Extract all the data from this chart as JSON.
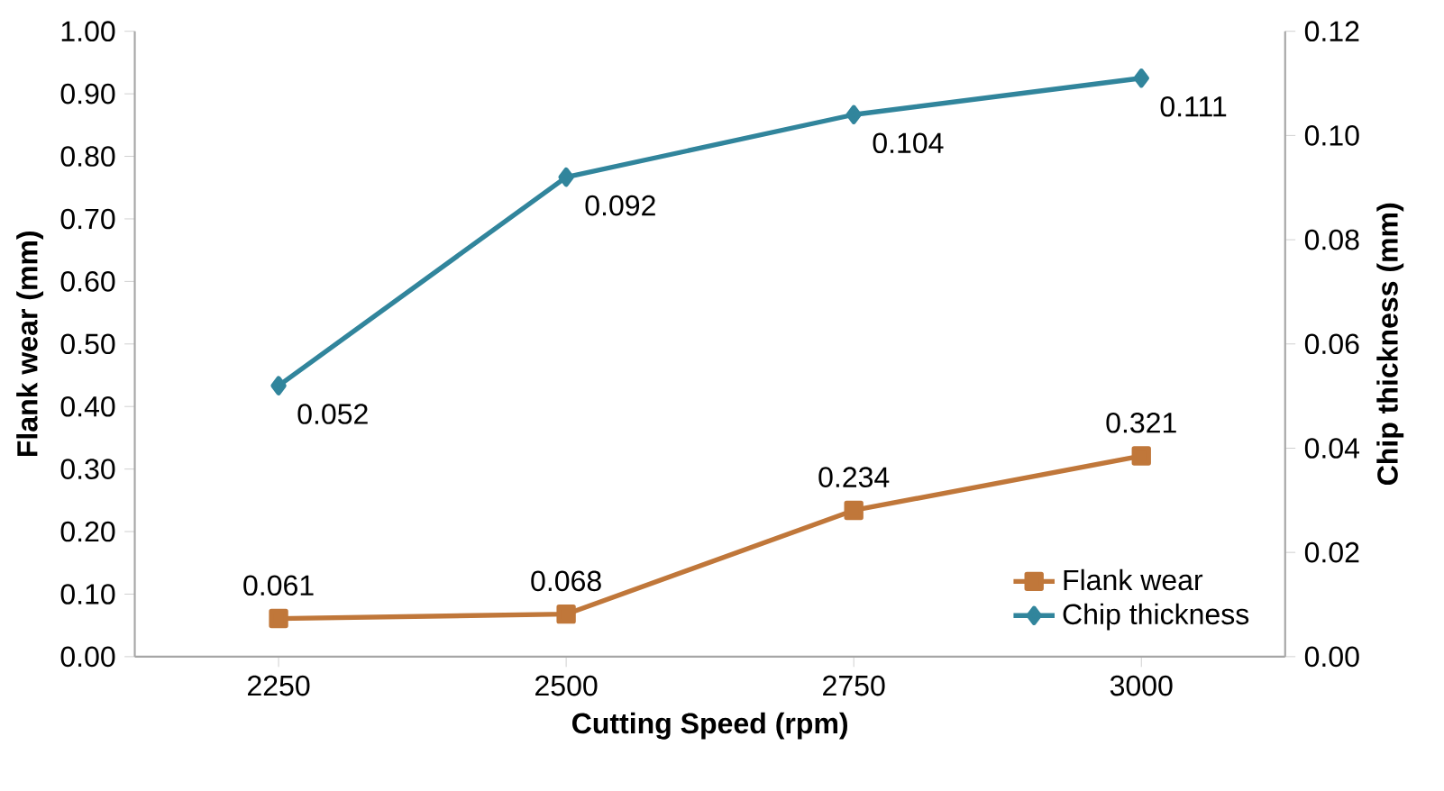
{
  "chart_data": {
    "type": "line",
    "xlabel": "Cutting Speed (rpm)",
    "ylabel": "Flank wear (mm)",
    "y2label": "Chip thickness (mm)",
    "categories": [
      "2250",
      "2500",
      "2750",
      "3000"
    ],
    "series": [
      {
        "name": "Flank wear",
        "color": "#c0773a",
        "marker": "square",
        "values": [
          0.061,
          0.068,
          0.234,
          0.321
        ]
      },
      {
        "name": "Chip thickness",
        "color": "#31859c",
        "marker": "diamond",
        "axis": "y2",
        "values": [
          0.052,
          0.092,
          0.104,
          0.111
        ]
      }
    ],
    "ylim": [
      0,
      1
    ],
    "yticks": [
      {
        "value": 0,
        "label": "0.00"
      },
      {
        "value": 0.1,
        "label": "0.10"
      },
      {
        "value": 0.2,
        "label": "0.20"
      },
      {
        "value": 0.3,
        "label": "0.30"
      },
      {
        "value": 0.4,
        "label": "0.40"
      },
      {
        "value": 0.5,
        "label": "0.50"
      },
      {
        "value": 0.6,
        "label": "0.60"
      },
      {
        "value": 0.7,
        "label": "0.70"
      },
      {
        "value": 0.8,
        "label": "0.80"
      },
      {
        "value": 0.9,
        "label": "0.90"
      },
      {
        "value": 1,
        "label": "1.00"
      }
    ],
    "y2lim": [
      0,
      0.12
    ],
    "y2ticks": [
      {
        "value": 0,
        "label": "0.00"
      },
      {
        "value": 0.02,
        "label": "0.02"
      },
      {
        "value": 0.04,
        "label": "0.04"
      },
      {
        "value": 0.06,
        "label": "0.06"
      },
      {
        "value": 0.08,
        "label": "0.08"
      },
      {
        "value": 0.1,
        "label": "0.10"
      },
      {
        "value": 0.12,
        "label": "0.12"
      }
    ],
    "data_labels": true,
    "legend": "bottom right",
    "grid": false,
    "line_style": "solid"
  }
}
